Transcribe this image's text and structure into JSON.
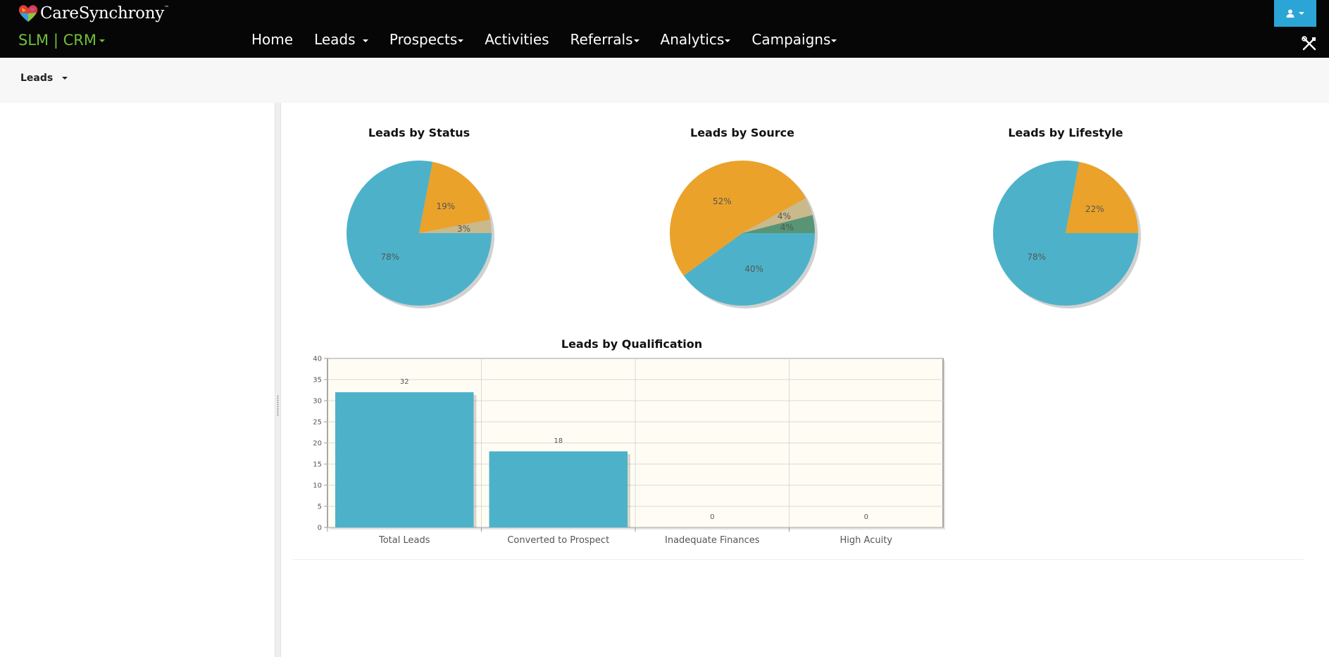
{
  "brand": {
    "name": "CareSynchrony",
    "tm": "™",
    "app_switch": "SLM | CRM"
  },
  "nav": {
    "home": "Home",
    "leads": "Leads",
    "prospects": "Prospects",
    "activities": "Activities",
    "referrals": "Referrals",
    "analytics": "Analytics",
    "campaigns": "Campaigns"
  },
  "subnav": {
    "dropdown": "Leads"
  },
  "colors": {
    "blue": "#4db2c9",
    "orange": "#eaa22a",
    "tan": "#c9b98c",
    "green": "#579575",
    "accent": "#2ba5d6",
    "brand_green": "#6fbf3a"
  },
  "chart_data": [
    {
      "type": "pie",
      "title": "Leads by Status",
      "slices": [
        {
          "value": 78,
          "label": "78%",
          "color": "#4db2c9"
        },
        {
          "value": 19,
          "label": "19%",
          "color": "#eaa22a"
        },
        {
          "value": 3,
          "label": "3%",
          "color": "#c9b98c"
        }
      ]
    },
    {
      "type": "pie",
      "title": "Leads by Source",
      "slices": [
        {
          "value": 40,
          "label": "40%",
          "color": "#4db2c9"
        },
        {
          "value": 52,
          "label": "52%",
          "color": "#eaa22a"
        },
        {
          "value": 4,
          "label": "4%",
          "color": "#c9b98c"
        },
        {
          "value": 4,
          "label": "4%",
          "color": "#579575"
        }
      ]
    },
    {
      "type": "pie",
      "title": "Leads by Lifestyle",
      "slices": [
        {
          "value": 78,
          "label": "78%",
          "color": "#4db2c9"
        },
        {
          "value": 22,
          "label": "22%",
          "color": "#eaa22a"
        }
      ]
    },
    {
      "type": "bar",
      "title": "Leads by Qualification",
      "categories": [
        "Total Leads",
        "Converted to Prospect",
        "Inadequate Finances",
        "High Acuity"
      ],
      "values": [
        32,
        18,
        0,
        0
      ],
      "value_labels": [
        "32",
        "18",
        "0",
        "0"
      ],
      "ylim": [
        0,
        40
      ],
      "yticks": [
        "0",
        "5",
        "10",
        "15",
        "20",
        "25",
        "30",
        "35",
        "40"
      ],
      "grid": true,
      "bar_color": "#4db2c9",
      "plot_background": "#fffdf3"
    }
  ]
}
